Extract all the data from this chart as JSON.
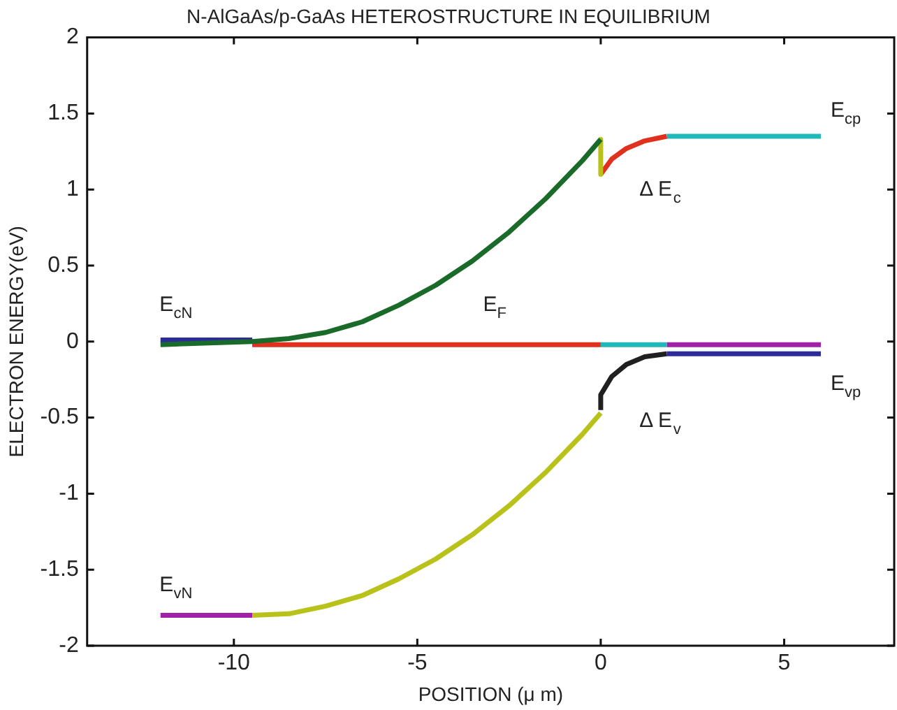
{
  "chart_data": {
    "type": "line",
    "title": "N-AlGaAs/p-GaAs HETEROSTRUCTURE IN EQUILIBRIUM",
    "xlabel": "POSITION (μ m)",
    "ylabel": "ELECTRON ENERGY(eV)",
    "xlim": [
      -14,
      8
    ],
    "xticks": [
      -10,
      -5,
      0,
      5
    ],
    "ylim": [
      -2,
      2
    ],
    "yticks": [
      -2,
      -1.5,
      -1,
      -0.5,
      0,
      0.5,
      1,
      1.5,
      2
    ],
    "grid": false,
    "legend": false,
    "marker": "none",
    "line_style": "solid",
    "series": [
      {
        "color": "#1a6b2a",
        "x": [
          -12,
          -9.5,
          -8.5,
          -7.5,
          -6.5,
          -5.5,
          -4.5,
          -3.5,
          -2.5,
          -1.5,
          -0.5,
          0
        ],
        "values": [
          -0.02,
          0,
          0.02,
          0.06,
          0.13,
          0.24,
          0.37,
          0.53,
          0.72,
          0.94,
          1.19,
          1.33
        ]
      },
      {
        "color": "#2b2b9a",
        "x": [
          -12,
          -9.5
        ],
        "values": [
          0.01,
          0.01
        ]
      },
      {
        "color": "#b8c21a",
        "x": [
          0,
          0
        ],
        "values": [
          1.33,
          1.1
        ]
      },
      {
        "color": "#e0301e",
        "x": [
          0,
          0.3,
          0.7,
          1.2,
          1.8
        ],
        "values": [
          1.1,
          1.2,
          1.27,
          1.32,
          1.35
        ]
      },
      {
        "color": "#20b8b8",
        "x": [
          1.8,
          6
        ],
        "values": [
          1.35,
          1.35
        ]
      },
      {
        "color": "#e0301e",
        "x": [
          -9.5,
          0
        ],
        "values": [
          -0.02,
          -0.02
        ]
      },
      {
        "color": "#20b8b8",
        "x": [
          0,
          1.8
        ],
        "values": [
          -0.02,
          -0.02
        ]
      },
      {
        "color": "#2b2b9a",
        "x": [
          1.8,
          6
        ],
        "values": [
          -0.08,
          -0.08
        ]
      },
      {
        "color": "#a020a8",
        "x": [
          1.8,
          6
        ],
        "values": [
          -0.02,
          -0.02
        ]
      },
      {
        "color": "#202020",
        "x": [
          0,
          0,
          0.3,
          0.7,
          1.2,
          1.8
        ],
        "values": [
          -0.45,
          -0.35,
          -0.23,
          -0.15,
          -0.1,
          -0.08
        ]
      },
      {
        "color": "#b8c21a",
        "x": [
          -9.5,
          -8.5,
          -7.5,
          -6.5,
          -5.5,
          -4.5,
          -3.5,
          -2.5,
          -1.5,
          -0.5,
          0
        ],
        "values": [
          -1.8,
          -1.79,
          -1.74,
          -1.67,
          -1.56,
          -1.43,
          -1.27,
          -1.08,
          -0.86,
          -0.61,
          -0.47
        ]
      },
      {
        "color": "#a020a8",
        "x": [
          -12,
          -9.5
        ],
        "values": [
          -1.8,
          -1.8
        ]
      }
    ],
    "annotations": [
      "E$_{cN}$",
      "E$_{F}$",
      "E$_{cp}$",
      "Δ E$_{c}$",
      "Δ E$_{v}$",
      "E$_{vp}$",
      "E$_{vN}$"
    ]
  }
}
